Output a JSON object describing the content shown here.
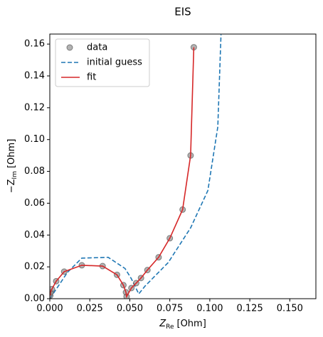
{
  "chart_data": {
    "type": "scatter",
    "title": "EIS",
    "xlabel": {
      "symbol": "Z",
      "subscript": "Re",
      "unit": "[Ohm]"
    },
    "ylabel": {
      "symbol": "−Z",
      "subscript": "Im",
      "unit": "[Ohm]"
    },
    "xlim": [
      0,
      0.1663
    ],
    "ylim": [
      0,
      0.1663
    ],
    "xticks": [
      {
        "value": 0,
        "label": "0.000"
      },
      0.025,
      {
        "value": 0.05,
        "label": "0.050"
      },
      0.075,
      {
        "value": 0.1,
        "label": "0.100"
      },
      0.125,
      {
        "value": 0.15,
        "label": "0.150"
      }
    ],
    "yticks": [
      {
        "value": 0,
        "label": "0.00"
      },
      0.02,
      0.04,
      0.06,
      0.08,
      {
        "value": 0.1,
        "label": "0.10"
      },
      0.12,
      0.14,
      0.16
    ],
    "legend": "upper left",
    "series": [
      {
        "name": "data",
        "style": "marker",
        "color": "#808080",
        "x": [
          0.0003,
          0.0004,
          0.0013,
          0.004,
          0.009,
          0.02,
          0.033,
          0.042,
          0.046,
          0.0476,
          0.048,
          0.051,
          0.054,
          0.057,
          0.061,
          0.068,
          0.075,
          0.083,
          0.088,
          0.09
        ],
        "values": [
          0.002,
          0.004,
          0.006,
          0.011,
          0.017,
          0.021,
          0.0205,
          0.015,
          0.0085,
          0.004,
          0.0013,
          0.0067,
          0.0098,
          0.013,
          0.018,
          0.026,
          0.038,
          0.056,
          0.09,
          0.158
        ]
      },
      {
        "name": "initial guess",
        "style": "dashed",
        "color": "#1f77b4",
        "x": [
          0,
          0.0067,
          0.011,
          0.02,
          0.0365,
          0.047,
          0.051,
          0.0556,
          0.0596,
          0.074,
          0.088,
          0.0988,
          0.105,
          0.107
        ],
        "values": [
          0,
          0.01,
          0.0165,
          0.0255,
          0.026,
          0.019,
          0.0125,
          0.003,
          0.008,
          0.0227,
          0.0445,
          0.068,
          0.108,
          0.166
        ]
      },
      {
        "name": "fit",
        "style": "solid",
        "color": "#d62728",
        "x": [
          0.0003,
          0.0004,
          0.0013,
          0.004,
          0.009,
          0.02,
          0.033,
          0.042,
          0.046,
          0.0476,
          0.048,
          0.051,
          0.054,
          0.057,
          0.061,
          0.068,
          0.075,
          0.083,
          0.088,
          0.09
        ],
        "values": [
          0.002,
          0.004,
          0.006,
          0.011,
          0.017,
          0.021,
          0.0205,
          0.015,
          0.0085,
          0.004,
          0.0013,
          0.0067,
          0.0098,
          0.013,
          0.018,
          0.026,
          0.038,
          0.056,
          0.09,
          0.158
        ]
      }
    ]
  }
}
